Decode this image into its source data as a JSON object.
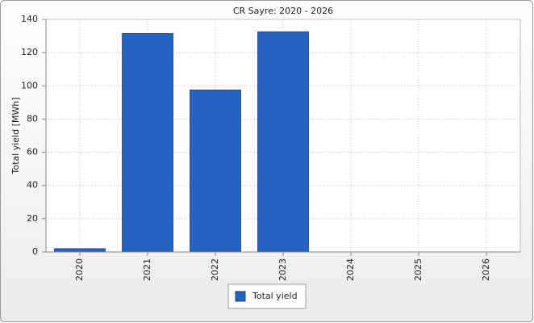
{
  "chart_data": {
    "type": "bar",
    "title": "CR Sayre: 2020 - 2026",
    "categories": [
      "2020",
      "2021",
      "2022",
      "2023",
      "2024",
      "2025",
      "2026"
    ],
    "series": [
      {
        "name": "Total yield",
        "color": "#2563c2",
        "values": [
          2,
          131.5,
          97.5,
          132.5,
          null,
          null,
          null
        ]
      }
    ],
    "y_label": "Total yield [MWh]",
    "ylim": [
      0,
      140
    ],
    "yticks": [
      0,
      20,
      40,
      60,
      80,
      100,
      120,
      140
    ],
    "grid": true,
    "legend": "bottom"
  }
}
